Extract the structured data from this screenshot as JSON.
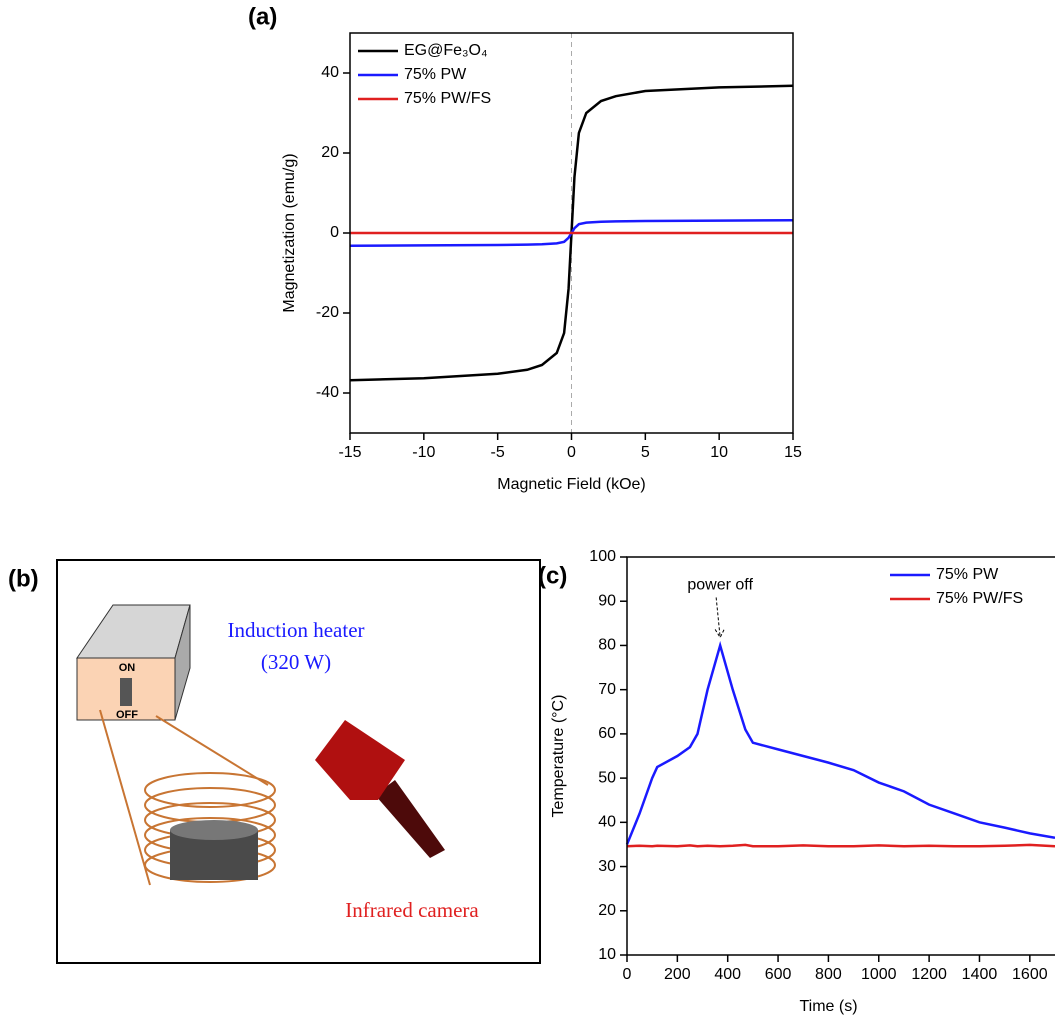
{
  "chart_data": [
    {
      "type": "line",
      "label": "(a)",
      "xlabel": "Magnetic Field (kOe)",
      "ylabel": "Magnetization (emu/g)",
      "x": [
        -15,
        -10,
        -5,
        -3,
        -2,
        -1,
        -0.5,
        -0.2,
        0,
        0.2,
        0.5,
        1,
        2,
        3,
        5,
        10,
        15
      ],
      "series": [
        {
          "name": "EG@Fe₃O₄",
          "color": "#000000",
          "values": [
            -36.8,
            -36.3,
            -35.2,
            -34.2,
            -33,
            -30,
            -25,
            -14,
            0,
            14,
            25,
            30,
            33,
            34.2,
            35.5,
            36.4,
            36.8
          ]
        },
        {
          "name": "75% PW",
          "color": "#1a1aff",
          "values": [
            -3.2,
            -3.1,
            -3,
            -2.9,
            -2.8,
            -2.6,
            -2.2,
            -1.2,
            0,
            1.2,
            2.2,
            2.6,
            2.8,
            2.9,
            3,
            3.1,
            3.2
          ]
        },
        {
          "name": "75% PW/FS",
          "color": "#e02020",
          "values": [
            0,
            0,
            0,
            0,
            0,
            0,
            0,
            0,
            0,
            0,
            0,
            0,
            0,
            0,
            0,
            0,
            0
          ]
        }
      ],
      "xlim": [
        -15,
        15
      ],
      "xticks": [
        -15,
        -10,
        -5,
        0,
        5,
        10,
        15
      ],
      "ylim": [
        -50,
        50
      ],
      "yticks": [
        -40,
        -20,
        0,
        20,
        40
      ],
      "vline": 0,
      "legend": "upper left"
    },
    {
      "type": "line",
      "label": "(c)",
      "xlabel": "Time (s)",
      "ylabel": "Temperature (°C)",
      "x": [
        0,
        50,
        100,
        120,
        200,
        250,
        280,
        320,
        370,
        420,
        470,
        500,
        600,
        700,
        800,
        900,
        1000,
        1100,
        1200,
        1300,
        1400,
        1500,
        1600,
        1700
      ],
      "series": [
        {
          "name": "75% PW",
          "color": "#1a1aff",
          "values": [
            35,
            42,
            50,
            52.5,
            55,
            57,
            60,
            70,
            80,
            70,
            61,
            58,
            56.5,
            55,
            53.5,
            51.8,
            49,
            47,
            44,
            42,
            40,
            38.8,
            37.5,
            36.5
          ]
        },
        {
          "name": "75% PW/FS",
          "color": "#e02020",
          "values": [
            34.6,
            34.7,
            34.6,
            34.7,
            34.6,
            34.8,
            34.6,
            34.7,
            34.6,
            34.7,
            34.9,
            34.6,
            34.6,
            34.8,
            34.6,
            34.6,
            34.8,
            34.6,
            34.7,
            34.6,
            34.6,
            34.7,
            34.9,
            34.6
          ]
        }
      ],
      "xlim": [
        0,
        1700
      ],
      "xticks": [
        0,
        200,
        400,
        600,
        800,
        1000,
        1200,
        1400,
        1600
      ],
      "ylim": [
        10,
        100
      ],
      "yticks": [
        10,
        20,
        30,
        40,
        50,
        60,
        70,
        80,
        90,
        100
      ],
      "annotations": [
        {
          "text": "power off",
          "x": 370,
          "y": 80
        }
      ],
      "legend": "upper right"
    }
  ],
  "diagram": {
    "label": "(b)",
    "heater": "Induction heater",
    "power": "(320 W)",
    "on": "ON",
    "off": "OFF",
    "camera": "Infrared camera"
  }
}
